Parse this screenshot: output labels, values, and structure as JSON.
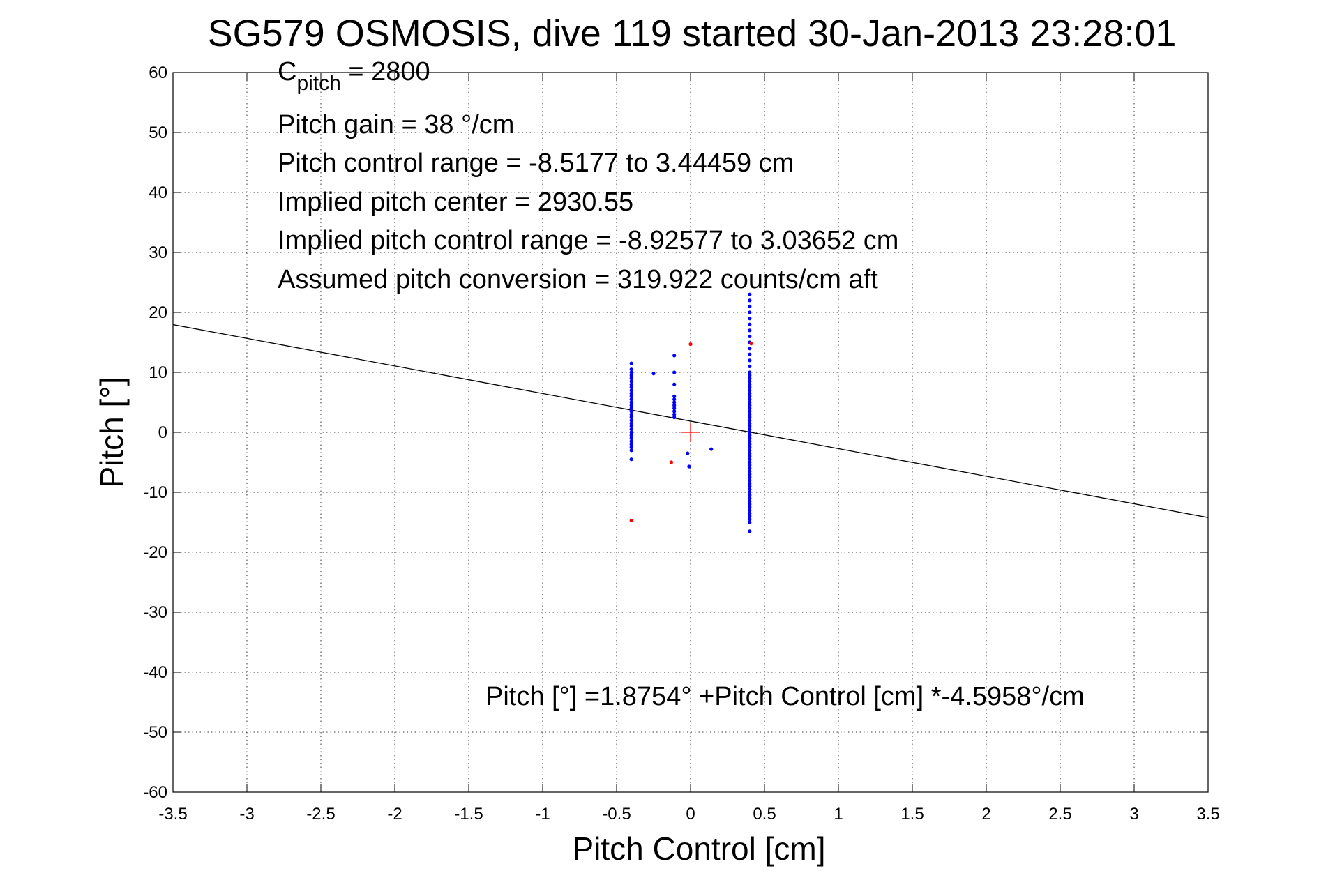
{
  "chart_data": {
    "type": "scatter",
    "title": "SG579 OSMOSIS, dive 119 started 30-Jan-2013 23:28:01",
    "xlabel": "Pitch Control [cm]",
    "ylabel": "Pitch [°]",
    "xlim": [
      -3.5,
      3.5
    ],
    "ylim": [
      -60,
      60
    ],
    "xticks": [
      -3.5,
      -3,
      -2.5,
      -2,
      -1.5,
      -1,
      -0.5,
      0,
      0.5,
      1,
      1.5,
      2,
      2.5,
      3,
      3.5
    ],
    "xtick_labels": [
      "-3.5",
      "-3",
      "-2.5",
      "-2",
      "-1.5",
      "-1",
      "-0.5",
      "0",
      "0.5",
      "1",
      "1.5",
      "2",
      "2.5",
      "3",
      "3.5"
    ],
    "yticks": [
      60,
      50,
      40,
      30,
      20,
      10,
      0,
      -10,
      -20,
      -30,
      -40,
      -50,
      -60
    ],
    "ytick_labels": [
      "60",
      "50",
      "40",
      "30",
      "20",
      "10",
      "0",
      "-10",
      "-20",
      "-30",
      "-40",
      "-50",
      "-60"
    ],
    "grid": "dotted",
    "colors": {
      "used_points": "#0000ff",
      "rejected_points": "#ff0000",
      "fit_line": "#000000",
      "center_marker": "#ff0000"
    },
    "annotations": {
      "c_pitch_symbol": "C",
      "c_pitch_subscript": "pitch",
      "c_pitch_value": " = 2800",
      "lines": [
        "Pitch gain = 38 °/cm",
        "Pitch control range = -8.5177 to 3.44459 cm",
        "Implied pitch center = 2930.55",
        "Implied pitch control range = -8.92577 to 3.03652 cm",
        "Assumed pitch conversion = 319.922 counts/cm aft"
      ],
      "fit_equation": "Pitch [°] =1.8754° +Pitch Control [cm] *-4.5958°/cm"
    },
    "fit_line": {
      "intercept": 1.8754,
      "slope": -4.5958
    },
    "center_marker": {
      "x": 0,
      "y": 0
    },
    "series": [
      {
        "role": "used",
        "points": [
          [
            -0.4,
            11.5
          ],
          [
            -0.4,
            10.5
          ],
          [
            -0.4,
            10
          ],
          [
            -0.4,
            9.5
          ],
          [
            -0.4,
            9
          ],
          [
            -0.4,
            8.5
          ],
          [
            -0.4,
            8
          ],
          [
            -0.4,
            7.5
          ],
          [
            -0.4,
            7
          ],
          [
            -0.4,
            6.5
          ],
          [
            -0.4,
            6
          ],
          [
            -0.4,
            5.5
          ],
          [
            -0.4,
            5
          ],
          [
            -0.4,
            4.5
          ],
          [
            -0.4,
            4
          ],
          [
            -0.4,
            3.5
          ],
          [
            -0.4,
            3
          ],
          [
            -0.4,
            2.5
          ],
          [
            -0.4,
            2
          ],
          [
            -0.4,
            1.5
          ],
          [
            -0.4,
            1
          ],
          [
            -0.4,
            0.5
          ],
          [
            -0.4,
            0
          ],
          [
            -0.4,
            -0.5
          ],
          [
            -0.4,
            -1
          ],
          [
            -0.4,
            -1.5
          ],
          [
            -0.4,
            -2
          ],
          [
            -0.4,
            -2.5
          ],
          [
            -0.4,
            -3
          ],
          [
            -0.4,
            -4.5
          ],
          [
            -0.25,
            9.8
          ],
          [
            -0.11,
            12.8
          ],
          [
            -0.11,
            10
          ],
          [
            -0.11,
            8
          ],
          [
            -0.11,
            6
          ],
          [
            -0.11,
            5.5
          ],
          [
            -0.11,
            5
          ],
          [
            -0.11,
            4.5
          ],
          [
            -0.11,
            4
          ],
          [
            -0.11,
            3.5
          ],
          [
            -0.11,
            3
          ],
          [
            -0.11,
            2.5
          ],
          [
            -0.02,
            -3.5
          ],
          [
            -0.01,
            -5.7
          ],
          [
            0.14,
            -2.8
          ],
          [
            0.4,
            23
          ],
          [
            0.4,
            22
          ],
          [
            0.4,
            21
          ],
          [
            0.4,
            20
          ],
          [
            0.4,
            19
          ],
          [
            0.4,
            18
          ],
          [
            0.4,
            17
          ],
          [
            0.4,
            16
          ],
          [
            0.4,
            15
          ],
          [
            0.4,
            14
          ],
          [
            0.4,
            13
          ],
          [
            0.4,
            12
          ],
          [
            0.4,
            11
          ],
          [
            0.4,
            10
          ],
          [
            0.4,
            9.5
          ],
          [
            0.4,
            9
          ],
          [
            0.4,
            8.5
          ],
          [
            0.4,
            8
          ],
          [
            0.4,
            7.5
          ],
          [
            0.4,
            7
          ],
          [
            0.4,
            6.5
          ],
          [
            0.4,
            6
          ],
          [
            0.4,
            5.5
          ],
          [
            0.4,
            5
          ],
          [
            0.4,
            4.5
          ],
          [
            0.4,
            4
          ],
          [
            0.4,
            3.5
          ],
          [
            0.4,
            3
          ],
          [
            0.4,
            2.5
          ],
          [
            0.4,
            2
          ],
          [
            0.4,
            1.5
          ],
          [
            0.4,
            1
          ],
          [
            0.4,
            0.5
          ],
          [
            0.4,
            0
          ],
          [
            0.4,
            -0.5
          ],
          [
            0.4,
            -1
          ],
          [
            0.4,
            -1.5
          ],
          [
            0.4,
            -2
          ],
          [
            0.4,
            -2.5
          ],
          [
            0.4,
            -3
          ],
          [
            0.4,
            -3.5
          ],
          [
            0.4,
            -4
          ],
          [
            0.4,
            -4.5
          ],
          [
            0.4,
            -5
          ],
          [
            0.4,
            -5.5
          ],
          [
            0.4,
            -6
          ],
          [
            0.4,
            -6.5
          ],
          [
            0.4,
            -7
          ],
          [
            0.4,
            -7.5
          ],
          [
            0.4,
            -8
          ],
          [
            0.4,
            -8.5
          ],
          [
            0.4,
            -9
          ],
          [
            0.4,
            -9.5
          ],
          [
            0.4,
            -10
          ],
          [
            0.4,
            -10.5
          ],
          [
            0.4,
            -11
          ],
          [
            0.4,
            -11.5
          ],
          [
            0.4,
            -12
          ],
          [
            0.4,
            -12.5
          ],
          [
            0.4,
            -13
          ],
          [
            0.4,
            -13.5
          ],
          [
            0.4,
            -14
          ],
          [
            0.4,
            -14.5
          ],
          [
            0.4,
            -15
          ],
          [
            0.4,
            -16.5
          ]
        ]
      },
      {
        "role": "rejected",
        "points": [
          [
            -0.4,
            -14.7
          ],
          [
            -0.13,
            -5
          ],
          [
            0,
            14.7
          ],
          [
            0.41,
            14.8
          ]
        ]
      }
    ]
  }
}
